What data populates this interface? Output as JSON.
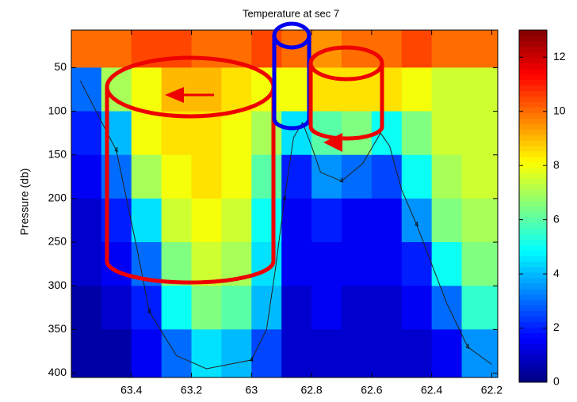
{
  "chart_data": {
    "type": "contour",
    "title": "Temperature at sec 7",
    "ylabel": "Pressure (db)",
    "x": [
      63.55,
      63.45,
      63.35,
      63.25,
      63.15,
      63.05,
      62.95,
      62.85,
      62.75,
      62.65,
      62.55,
      62.45,
      62.35,
      62.25
    ],
    "y": [
      25,
      75,
      125,
      175,
      225,
      275,
      325,
      375
    ],
    "z": [
      [
        10,
        10,
        10.5,
        10.5,
        10,
        10,
        10.5,
        10,
        9.5,
        10,
        10,
        10.5,
        10,
        10
      ],
      [
        3,
        7,
        8,
        9,
        9,
        8.5,
        8,
        8,
        8.5,
        8.5,
        8.5,
        8,
        7.5,
        7.5
      ],
      [
        2,
        4,
        8,
        8.5,
        8.5,
        8,
        7,
        4.5,
        6,
        6.5,
        5,
        6.5,
        7.5,
        7.5
      ],
      [
        1.5,
        3,
        7,
        8,
        8.5,
        8,
        6,
        2,
        3.5,
        3,
        2.5,
        5,
        7,
        7.5
      ],
      [
        1,
        2,
        4.5,
        7.5,
        8,
        7.5,
        5,
        1.5,
        2,
        1.5,
        1.5,
        3.5,
        6.5,
        7
      ],
      [
        1,
        1.5,
        3,
        6.5,
        7.5,
        7,
        4.5,
        1.5,
        1.5,
        1.5,
        1.5,
        2,
        5,
        6.5
      ],
      [
        0.5,
        1,
        2,
        5,
        6.5,
        6,
        4,
        1,
        1.5,
        1,
        1,
        1.5,
        3,
        5.5
      ],
      [
        0.5,
        0.5,
        1.5,
        3,
        4.5,
        4,
        2.5,
        1,
        1,
        1,
        1,
        1,
        1.5,
        3.5
      ]
    ],
    "contour": {
      "level": 4,
      "x": [
        63.57,
        63.45,
        63.38,
        63.34,
        63.25,
        63.15,
        63.0,
        62.95,
        62.92,
        62.89,
        62.86,
        62.83,
        62.8,
        62.77,
        62.7,
        62.63,
        62.57,
        62.54,
        62.5,
        62.45,
        62.4,
        62.35,
        62.28,
        62.2
      ],
      "y": [
        65,
        145,
        260,
        330,
        380,
        395,
        385,
        350,
        280,
        200,
        130,
        113,
        140,
        170,
        180,
        160,
        125,
        140,
        190,
        230,
        275,
        320,
        370,
        390
      ]
    },
    "xlim": [
      63.6,
      62.18
    ],
    "xticks": [
      63.4,
      63.2,
      63,
      62.8,
      62.6,
      62.4,
      62.2
    ],
    "ylim": [
      405,
      7
    ],
    "yticks": [
      50,
      100,
      150,
      200,
      250,
      300,
      350,
      400
    ],
    "clim": [
      0,
      13
    ],
    "cticks": [
      0,
      2,
      4,
      6,
      8,
      10,
      12
    ],
    "colormap": "jet"
  }
}
